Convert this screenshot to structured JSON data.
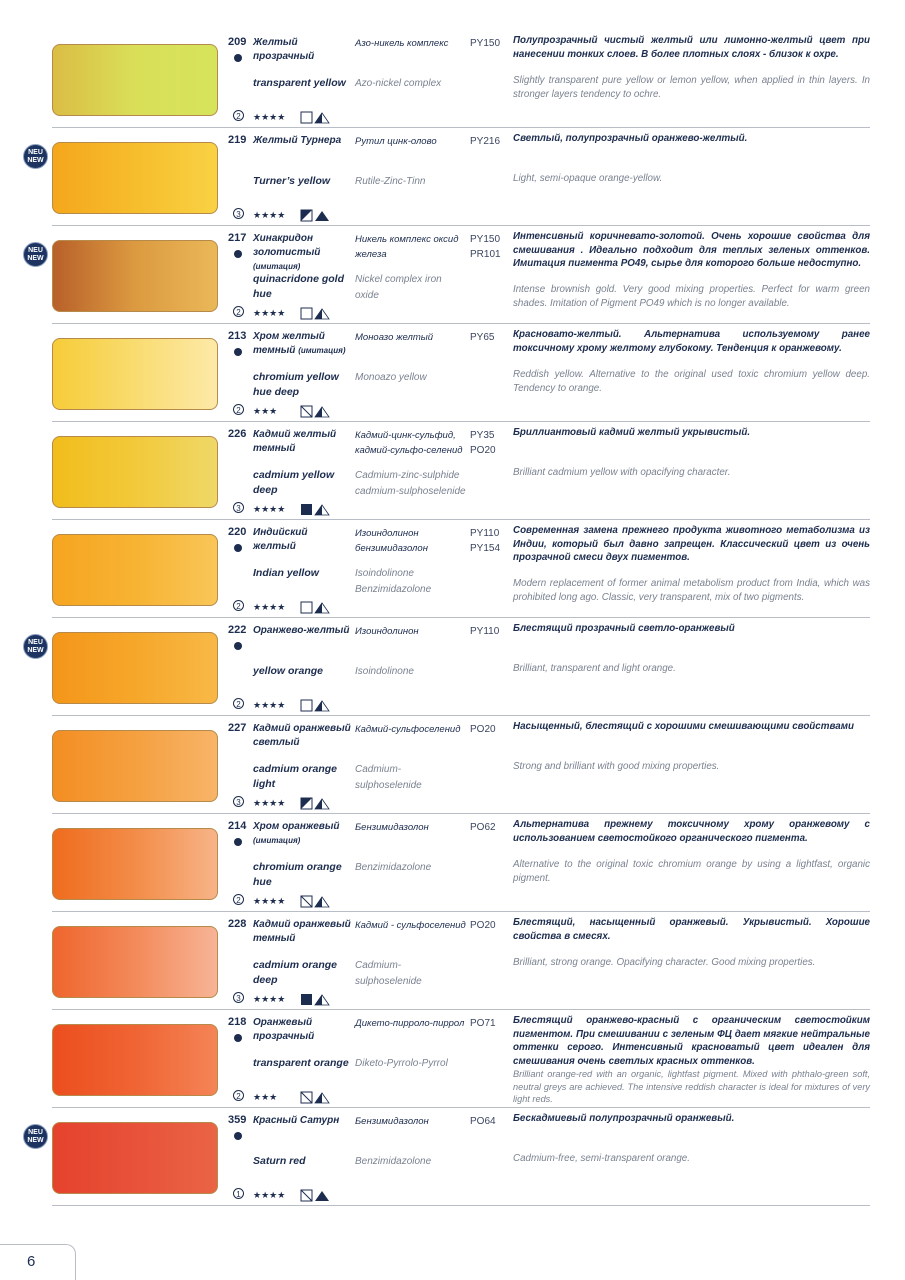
{
  "page_number": "6",
  "badge": {
    "line1": "NEU",
    "line2": "NEW"
  },
  "colors": {
    "text": "#1d2d4f",
    "muted": "#7a8290",
    "badge": "#1d3461"
  },
  "items": [
    {
      "number": "209",
      "new": false,
      "dot": true,
      "name_ru": "Желтый прозрачный",
      "name_ru_note": "",
      "name_en": "transparent yellow",
      "comp_ru": "Азо-никель комплекс",
      "comp_en": "Azo-nickel complex",
      "pigments": [
        "PY150"
      ],
      "desc_ru": "Полупрозрачный чистый желтый или лимонно-желтый цвет при нанесении тонких слоев. В более плотных слоях - близок к охре.",
      "desc_en": "Slightly transparent pure yellow or lemon yellow, when applied in thin layers. In stronger layers tendency to ochre.",
      "series": "2",
      "stars": "★★★★",
      "opacity": "transparent",
      "staining": "half",
      "swatch": [
        "#dbbd45",
        "#d9df58",
        "#d6e45c"
      ]
    },
    {
      "number": "219",
      "new": true,
      "dot": false,
      "name_ru": "Желтый Турнера",
      "name_ru_note": "",
      "name_en": "Turner’s yellow",
      "comp_ru": "Рутил цинк-олово",
      "comp_en": "Rutile-Zinc-Tinn",
      "pigments": [
        "PY216"
      ],
      "desc_ru": "Светлый, полупрозрачный оранжево-желтый.",
      "desc_en": "Light, semi-opaque orange-yellow.",
      "series": "3",
      "stars": "★★★★",
      "opacity": "semi-opaque",
      "staining": "full",
      "swatch": [
        "#f5a71c",
        "#f6bd2c",
        "#f9d244"
      ]
    },
    {
      "number": "217",
      "new": true,
      "dot": true,
      "name_ru": "Хинакридон золотистый",
      "name_ru_note": "(имитация)",
      "name_en": "quinacridone gold hue",
      "comp_ru": "Никель комплекс оксид железа",
      "comp_en": "Nickel complex iron oxide",
      "pigments": [
        "PY150",
        "PR101"
      ],
      "desc_ru": "Интенсивный коричневато-золотой. Очень хорошие свойства для смешивания . Идеально подходит для теплых зеленых оттенков. Имитация пигмента PO49, сырье для которого больше недоступно.",
      "desc_en": "Intense brownish gold. Very good mixing properties. Perfect for warm green shades. Imitation of Pigment PO49 which is no longer available.",
      "series": "2",
      "stars": "★★★★",
      "opacity": "transparent",
      "staining": "half",
      "swatch": [
        "#b8602a",
        "#dc9a40",
        "#eab858"
      ]
    },
    {
      "number": "213",
      "new": false,
      "dot": true,
      "name_ru": "Хром желтый темный",
      "name_ru_note": "(имитация)",
      "name_en": "chromium yellow hue deep",
      "comp_ru": "Моноазо желтый",
      "comp_en": "Monoazo yellow",
      "pigments": [
        "PY65"
      ],
      "desc_ru": "Красновато-желтый. Альтернатива используемому ранее токсичному хрому желтому глубокому. Тенденция к оранжевому.",
      "desc_en": "Reddish yellow. Alternative to the original used toxic chromium yellow deep. Tendency to orange.",
      "series": "2",
      "stars": "★★★",
      "opacity": "semi-transparent",
      "staining": "half",
      "swatch": [
        "#f6cc38",
        "#f9dc70",
        "#fde9a8"
      ]
    },
    {
      "number": "226",
      "new": false,
      "dot": false,
      "name_ru": "Кадмий желтый темный",
      "name_ru_note": "",
      "name_en": "cadmium yellow deep",
      "comp_ru": "Кадмий-цинк-сульфид, кадмий-сульфо-селенид",
      "comp_en": "Cadmium-zinc-sulphide cadmium-sulphoselenide",
      "pigments": [
        "PY35",
        "PO20"
      ],
      "desc_ru": "Бриллиантовый кадмий желтый укрывистый.",
      "desc_en": "Brilliant cadmium yellow with opacifying character.",
      "series": "3",
      "stars": "★★★★",
      "opacity": "opaque",
      "staining": "half",
      "swatch": [
        "#f1bd1c",
        "#f2c93a",
        "#efd868"
      ]
    },
    {
      "number": "220",
      "new": false,
      "dot": true,
      "name_ru": "Индийский желтый",
      "name_ru_note": "",
      "name_en": "Indian yellow",
      "comp_ru": "Изоиндолинон бензимидазолон",
      "comp_en": "Isoindolinone Benzimidazolone",
      "pigments": [
        "PY110",
        "PY154"
      ],
      "desc_ru": "Современная замена прежнего продукта животного метаболизма из Индии, который был давно запрещен. Классический цвет из очень прозрачной смеси двух пигментов.",
      "desc_en": "Modern replacement of former animal metabolism product from India, which was prohibited long ago. Classic, very transparent, mix of two pigments.",
      "series": "2",
      "stars": "★★★★",
      "opacity": "transparent",
      "staining": "half",
      "swatch": [
        "#f6a520",
        "#f7b332",
        "#f9c658"
      ]
    },
    {
      "number": "222",
      "new": true,
      "dot": true,
      "name_ru": "Оранжево-желтый",
      "name_ru_note": "",
      "name_en": "yellow orange",
      "comp_ru": "Изоиндолинон",
      "comp_en": "Isoindolinone",
      "pigments": [
        "PY110"
      ],
      "desc_ru": "Блестящий прозрачный светло-оранжевый",
      "desc_en": "Brilliant, transparent and light orange.",
      "series": "2",
      "stars": "★★★★",
      "opacity": "transparent",
      "staining": "half",
      "swatch": [
        "#f4961a",
        "#f6a72a",
        "#f8b846"
      ]
    },
    {
      "number": "227",
      "new": false,
      "dot": false,
      "name_ru": "Кадмий оранжевый светлый",
      "name_ru_note": "",
      "name_en": "cadmium orange light",
      "comp_ru": "Кадмий-сульфоселенид",
      "comp_en": "Cadmium-sulphoselenide",
      "pigments": [
        "PO20"
      ],
      "desc_ru": "Насыщенный, блестящий с хорошими смешивающими свойствами",
      "desc_en": "Strong and brilliant with good mixing properties.",
      "series": "3",
      "stars": "★★★★",
      "opacity": "semi-opaque",
      "staining": "half",
      "swatch": [
        "#f38e22",
        "#f5a040",
        "#f8b468"
      ]
    },
    {
      "number": "214",
      "new": false,
      "dot": true,
      "name_ru": "Хром оранжевый",
      "name_ru_note": "(имитация)",
      "name_en": "chromium orange hue",
      "comp_ru": "Бензимидазолон",
      "comp_en": "Benzimidazolone",
      "pigments": [
        "PO62"
      ],
      "desc_ru": "Альтернатива прежнему токсичному хрому оранжевому с использованием светостойкого органического пигмента.",
      "desc_en": "Alternative to the original toxic chromium orange by using a lightfast, organic pigment.",
      "series": "2",
      "stars": "★★★★",
      "opacity": "semi-transparent",
      "staining": "half",
      "swatch": [
        "#ef6c1e",
        "#f38c48",
        "#f7b488"
      ]
    },
    {
      "number": "228",
      "new": false,
      "dot": false,
      "name_ru": "Кадмий оранжевый темный",
      "name_ru_note": "",
      "name_en": "cadmium orange deep",
      "comp_ru": "Кадмий - сульфоселенид",
      "comp_en": "Cadmium-sulphoselenide",
      "pigments": [
        "PO20"
      ],
      "desc_ru": "Блестящий, насыщенный оранжевый. Укрывистый. Хорошие свойства в смесях.",
      "desc_en": "Brilliant, strong orange. Opacifying character. Good mixing properties.",
      "series": "3",
      "stars": "★★★★",
      "opacity": "opaque",
      "staining": "half",
      "swatch": [
        "#ef652e",
        "#f38a5a",
        "#f7b496"
      ]
    },
    {
      "number": "218",
      "new": false,
      "dot": true,
      "name_ru": "Оранжевый прозрачный",
      "name_ru_note": "",
      "name_en": "transparent orange",
      "comp_ru": "Дикето-пирроло-пиррол",
      "comp_en": "Diketo-Pyrrolo-Pyrrol",
      "pigments": [
        "PO71"
      ],
      "desc_ru": "Блестящий оранжево-красный с органическим светостойким пигментом. При смешивании с зеленым ФЦ дает мягкие нейтральные оттенки серого. Интенсивный красноватый цвет идеален для смешивания очень светлых красных оттенков.",
      "desc_en": "Brilliant orange-red with an organic, lightfast pigment. Mixed with phthalo-green soft, neutral greys are achieved. The intensive reddish character is ideal for mixtures of very light reds.",
      "series": "2",
      "stars": "★★★",
      "opacity": "semi-transparent",
      "staining": "half",
      "swatch": [
        "#ec4e1e",
        "#f06434",
        "#f48456"
      ]
    },
    {
      "number": "359",
      "new": true,
      "dot": true,
      "name_ru": "Красный Сатурн",
      "name_ru_note": "",
      "name_en": "Saturn red",
      "comp_ru": "Бензимидазолон",
      "comp_en": "Benzimidazolone",
      "pigments": [
        "PO64"
      ],
      "desc_ru": "Бескадмиевый полупрозрачный оранжевый.",
      "desc_en": "Cadmium-free,  semi-transparent orange.",
      "series": "1",
      "stars": "★★★★",
      "opacity": "semi-transparent",
      "staining": "full",
      "swatch": [
        "#e5422c",
        "#e8523a",
        "#e96444"
      ]
    }
  ]
}
